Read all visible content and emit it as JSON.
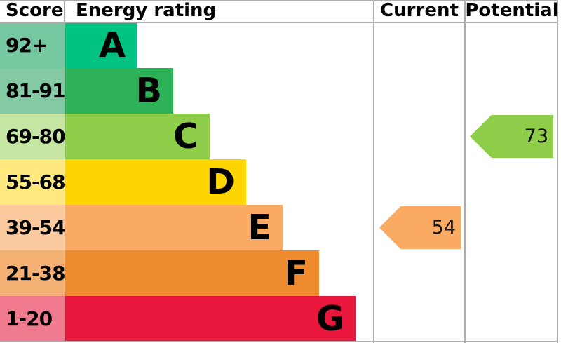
{
  "header": {
    "score": "Score",
    "energy_rating": "Energy rating",
    "current": "Current",
    "potential": "Potential"
  },
  "bands": [
    {
      "letter": "A",
      "range": "92+",
      "bar_color": "#00c281",
      "score_color": "#76c8a1"
    },
    {
      "letter": "B",
      "range": "81-91",
      "bar_color": "#2db258",
      "score_color": "#82c9a4"
    },
    {
      "letter": "C",
      "range": "69-80",
      "bar_color": "#8ecd4a",
      "score_color": "#c6e6a3"
    },
    {
      "letter": "D",
      "range": "55-68",
      "bar_color": "#ffd500",
      "score_color": "#ffe97e"
    },
    {
      "letter": "E",
      "range": "39-54",
      "bar_color": "#fbaa64",
      "score_color": "#fbc99e"
    },
    {
      "letter": "F",
      "range": "21-38",
      "bar_color": "#ee8b2f",
      "score_color": "#f5b173"
    },
    {
      "letter": "G",
      "range": "1-20",
      "bar_color": "#e9173e",
      "score_color": "#f17b8e"
    }
  ],
  "current": {
    "value": "54",
    "band": "E",
    "color": "#fbaa64"
  },
  "potential": {
    "value": "73",
    "band": "C",
    "color": "#8ecd4a"
  },
  "grid_color": "#adadad",
  "chart_data": {
    "type": "bar",
    "title": "Energy rating",
    "categories": [
      "A",
      "B",
      "C",
      "D",
      "E",
      "F",
      "G"
    ],
    "score_ranges": [
      "92+",
      "81-91",
      "69-80",
      "55-68",
      "39-54",
      "21-38",
      "1-20"
    ],
    "bar_relative_lengths": [
      1,
      1.5,
      2,
      2.5,
      3,
      3.5,
      4
    ],
    "columns": [
      "Score",
      "Energy rating",
      "Current",
      "Potential"
    ],
    "markers": [
      {
        "name": "Current",
        "value": 54,
        "band": "E"
      },
      {
        "name": "Potential",
        "value": 73,
        "band": "C"
      }
    ],
    "legend_position": "none",
    "grid": false
  }
}
